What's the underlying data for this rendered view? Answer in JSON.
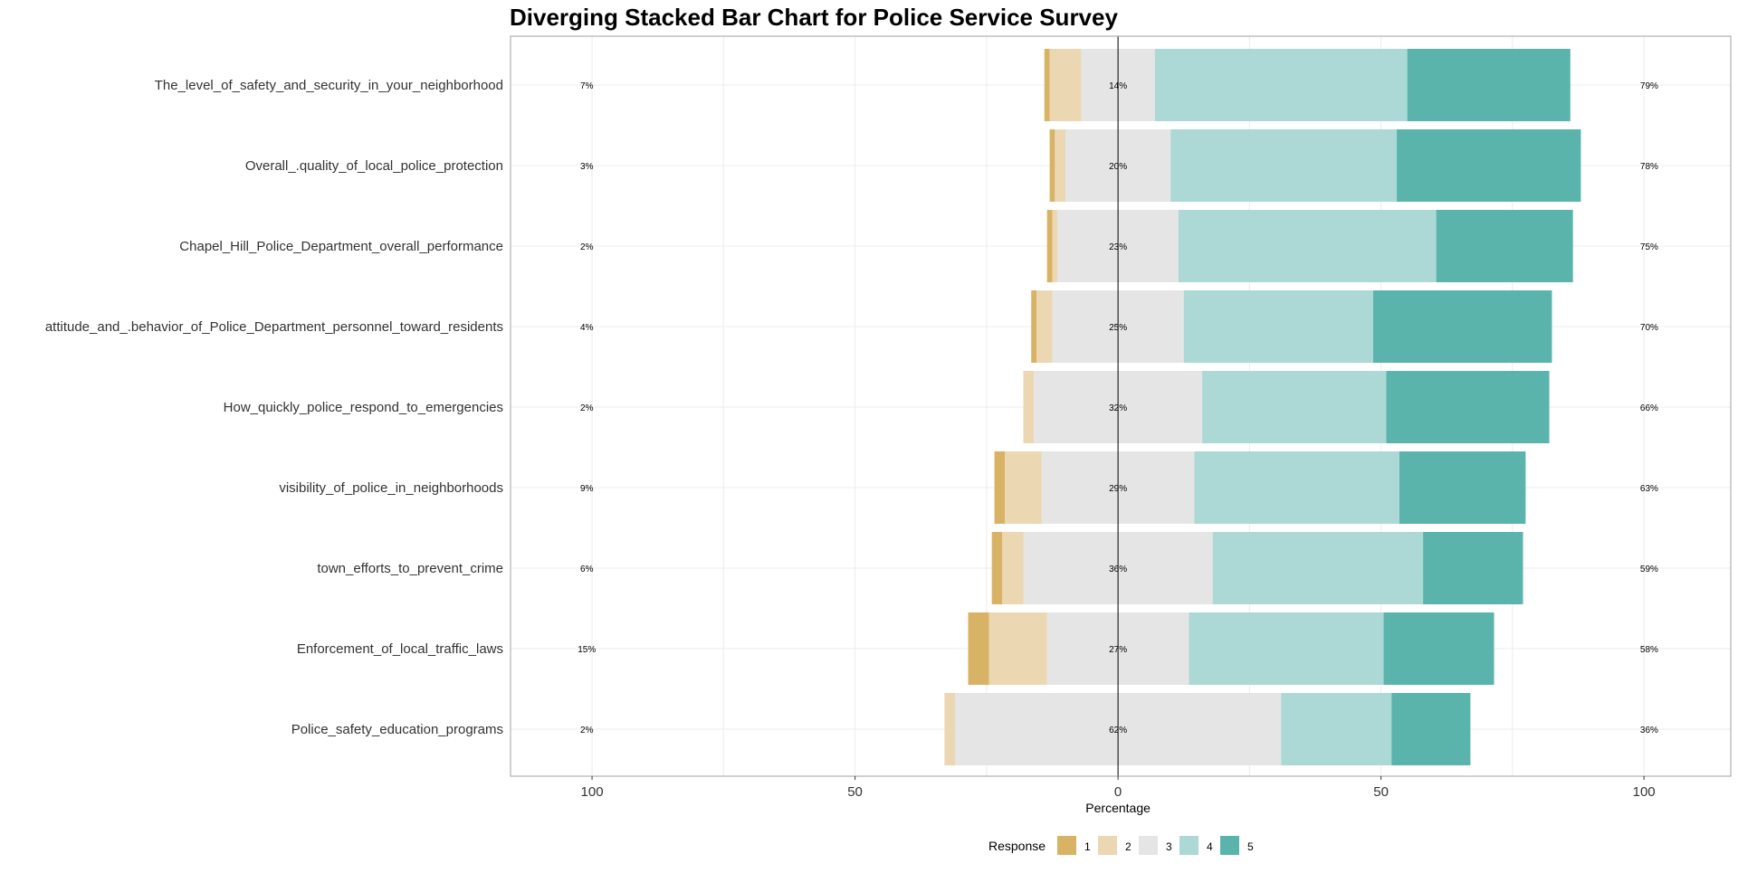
{
  "chart_data": {
    "type": "bar",
    "orientation": "horizontal",
    "stacking": "diverging",
    "title": "Diverging Stacked Bar Chart for Police Service Survey",
    "xlabel": "Percentage",
    "ylabel": "",
    "xlim": [
      -100,
      100
    ],
    "xticks": [
      -100,
      -50,
      0,
      50,
      100
    ],
    "xtick_labels": [
      "100",
      "50",
      "0",
      "50",
      "100"
    ],
    "grid": true,
    "legend": {
      "title": "Response",
      "placement": "bottom",
      "entries": [
        "1",
        "2",
        "3",
        "4",
        "5"
      ]
    },
    "colors": {
      "1": "#d8b365",
      "2": "#ebd8b2",
      "3": "#e5e5e5",
      "4": "#acd9d5",
      "5": "#5ab4ac"
    },
    "categories": [
      "The_level_of_safety_and_security_in_your_neighborhood",
      "Overall_.quality_of_local_police_protection",
      "Chapel_Hill_Police_Department_overall_performance",
      "attitude_and_.behavior_of_Police_Department_personnel_toward_residents",
      "How_quickly_police_respond_to_emergencies",
      "visibility_of_police_in_neighborhoods",
      "town_efforts_to_prevent_crime",
      "Enforcement_of_local_traffic_laws",
      "Police_safety_education_programs"
    ],
    "series": [
      {
        "name": "1",
        "values": [
          1,
          1,
          1,
          1,
          0,
          2,
          2,
          4,
          0
        ]
      },
      {
        "name": "2",
        "values": [
          6,
          2,
          1,
          3,
          2,
          7,
          4,
          11,
          2
        ]
      },
      {
        "name": "3",
        "values": [
          14,
          20,
          23,
          25,
          32,
          29,
          36,
          27,
          62
        ]
      },
      {
        "name": "4",
        "values": [
          48,
          43,
          49,
          36,
          35,
          39,
          40,
          37,
          21
        ]
      },
      {
        "name": "5",
        "values": [
          31,
          35,
          26,
          34,
          31,
          24,
          19,
          21,
          15
        ]
      }
    ],
    "labels": {
      "low": [
        "7%",
        "3%",
        "2%",
        "4%",
        "2%",
        "9%",
        "6%",
        "15%",
        "2%"
      ],
      "neutral": [
        "14%",
        "20%",
        "23%",
        "25%",
        "32%",
        "29%",
        "36%",
        "27%",
        "62%"
      ],
      "high": [
        "79%",
        "78%",
        "75%",
        "70%",
        "66%",
        "63%",
        "59%",
        "58%",
        "36%"
      ]
    }
  }
}
